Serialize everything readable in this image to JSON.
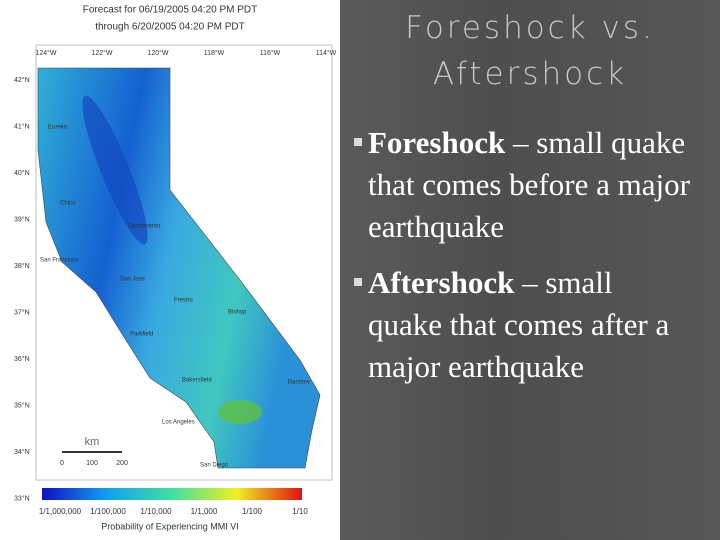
{
  "map": {
    "title_lines": [
      "Forecast for 06/19/2005 04:20 PM PDT",
      "through 6/20/2005 04:20 PM PDT"
    ],
    "longitudes": [
      "124°W",
      "122°W",
      "120°W",
      "118°W",
      "116°W",
      "114°W"
    ],
    "latitudes": [
      "42°N",
      "41°N",
      "40°N",
      "39°N",
      "38°N",
      "37°N",
      "36°N",
      "35°N",
      "34°N",
      "33°N"
    ],
    "cities": [
      "Eureka",
      "Chico",
      "Sacramento",
      "San Francisco",
      "San Jose",
      "Fresno",
      "Bishop",
      "Parkfield",
      "Bakersfield",
      "Barstow",
      "Los Angeles",
      "San Diego"
    ],
    "scale": {
      "unit": "km",
      "ticks": [
        "0",
        "100",
        "200"
      ]
    },
    "colorbar": {
      "labels": [
        "1/1,000,000",
        "1/100,000",
        "1/10,000",
        "1/1,000",
        "1/100",
        "1/10"
      ],
      "caption": "Probability of Experiencing MMI VI"
    }
  },
  "slide": {
    "title_lines": [
      "Foreshock vs.",
      "Aftershock"
    ],
    "bullets": [
      {
        "term": "Foreshock",
        "text": " – small quake that comes before a major earthquake"
      },
      {
        "term": "Aftershock",
        "text": " – small quake that comes after a major earthquake"
      }
    ]
  }
}
